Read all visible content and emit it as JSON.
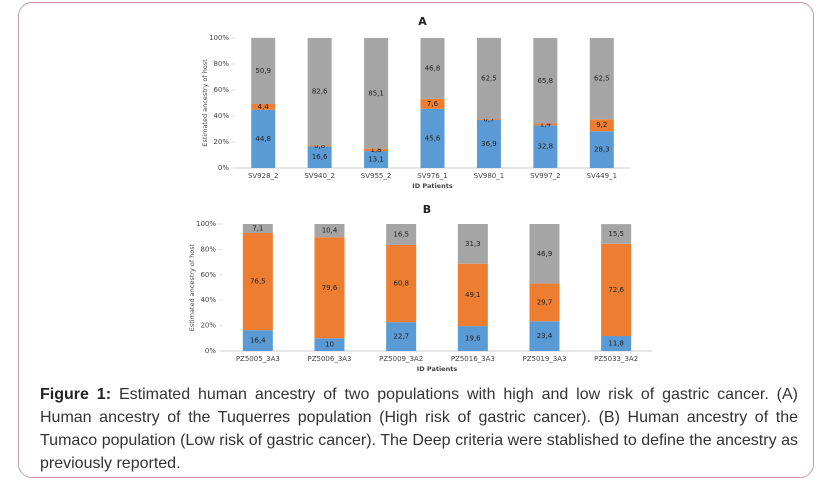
{
  "chart_data": [
    {
      "type": "stacked-bar",
      "title": "A",
      "ylabel": "Estimated ancestry of host",
      "xlabel": "ID Patients",
      "categories": [
        "SV928_2",
        "SV940_2",
        "SV955_2",
        "SV976_1",
        "SV980_1",
        "SV997_2",
        "SV449_1"
      ],
      "series": [
        {
          "color": "#5b9bd5",
          "values": [
            44.8,
            16.6,
            13.1,
            45.6,
            36.9,
            32.8,
            28.3
          ],
          "value_labels": [
            "44,8",
            "16,6",
            "13,1",
            "45,6",
            "36,9",
            "32,8",
            "28,3"
          ]
        },
        {
          "color": "#ed7d31",
          "values": [
            4.4,
            0.8,
            1.8,
            7.6,
            0.7,
            1.4,
            9.2
          ],
          "value_labels": [
            "4,4",
            "0,8",
            "1,8",
            "7,6",
            "0,7",
            "1,4",
            "9,2"
          ]
        },
        {
          "color": "#a5a5a5",
          "values": [
            50.9,
            82.6,
            85.1,
            46.8,
            62.5,
            65.8,
            62.5
          ],
          "value_labels": [
            "50,9",
            "82,6",
            "85,1",
            "46,8",
            "62,5",
            "65,8",
            "62,5"
          ]
        }
      ],
      "ylim": [
        0,
        100
      ],
      "yticks": [
        {
          "value": 0,
          "label": "0%"
        },
        {
          "value": 20,
          "label": "20%"
        },
        {
          "value": 40,
          "label": "40%"
        },
        {
          "value": 60,
          "label": "60%"
        },
        {
          "value": 80,
          "label": "80%"
        },
        {
          "value": 100,
          "label": "100%"
        }
      ]
    },
    {
      "type": "stacked-bar",
      "title": "B",
      "ylabel": "Estimated ancestry of host",
      "xlabel": "ID Patients",
      "categories": [
        "PZ5005_3A3",
        "PZ5006_3A3",
        "PZ5009_3A2",
        "PZ5016_3A3",
        "PZ5019_3A3",
        "PZ5033_3A2"
      ],
      "series": [
        {
          "color": "#5b9bd5",
          "values": [
            16.4,
            10,
            22.7,
            19.6,
            23.4,
            11.8
          ],
          "value_labels": [
            "16,4",
            "10",
            "22,7",
            "19,6",
            "23,4",
            "11,8"
          ]
        },
        {
          "color": "#ed7d31",
          "values": [
            76.5,
            79.6,
            60.8,
            49.1,
            29.7,
            72.6
          ],
          "value_labels": [
            "76,5",
            "79,6",
            "60,8",
            "49,1",
            "29,7",
            "72,6"
          ]
        },
        {
          "color": "#a5a5a5",
          "values": [
            7.1,
            10.4,
            16.5,
            31.3,
            46.9,
            15.5
          ],
          "value_labels": [
            "7,1",
            "10,4",
            "16,5",
            "31,3",
            "46,9",
            "15,5"
          ]
        }
      ],
      "ylim": [
        0,
        100
      ],
      "yticks": [
        {
          "value": 0,
          "label": "0%"
        },
        {
          "value": 20,
          "label": "20%"
        },
        {
          "value": 40,
          "label": "40%"
        },
        {
          "value": 60,
          "label": "60%"
        },
        {
          "value": 80,
          "label": "80%"
        },
        {
          "value": 100,
          "label": "100%"
        }
      ]
    }
  ],
  "caption": {
    "label": "Figure 1:",
    "text": "Estimated human ancestry of two populations with high and low risk of gastric cancer. (A) Human ancestry of the Tuquerres population (High risk of gastric cancer). (B) Human ancestry of the Tumaco population (Low risk of gastric cancer). The Deep criteria were stablished to define the ancestry as previously reported."
  }
}
